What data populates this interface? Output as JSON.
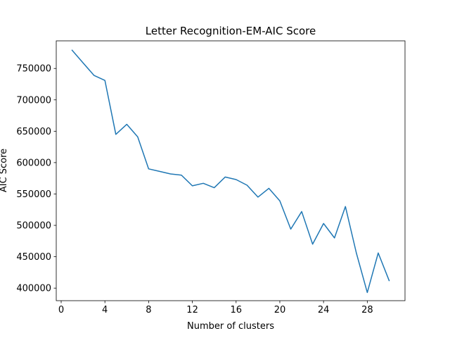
{
  "chart_data": {
    "type": "line",
    "title": "Letter Recognition-EM-AIC Score",
    "xlabel": "Number of clusters",
    "ylabel": "AIC Score",
    "xlim": [
      -0.45,
      31.45
    ],
    "ylim": [
      380000,
      794000
    ],
    "xticks": [
      0,
      4,
      8,
      12,
      16,
      20,
      24,
      28
    ],
    "xtick_labels": [
      "0",
      "4",
      "8",
      "12",
      "16",
      "20",
      "24",
      "28"
    ],
    "yticks": [
      400000,
      450000,
      500000,
      550000,
      600000,
      650000,
      700000,
      750000
    ],
    "ytick_labels": [
      "400000",
      "450000",
      "500000",
      "550000",
      "600000",
      "650000",
      "700000",
      "750000"
    ],
    "grid": false,
    "series": [
      {
        "color": "#1f77b4",
        "x": [
          1,
          2,
          3,
          4,
          5,
          6,
          7,
          8,
          9,
          10,
          11,
          12,
          13,
          14,
          15,
          16,
          17,
          18,
          19,
          20,
          21,
          22,
          23,
          24,
          25,
          26,
          27,
          28,
          29,
          30
        ],
        "y": [
          779000,
          759000,
          739000,
          731000,
          645000,
          661000,
          641000,
          590000,
          586000,
          582000,
          580000,
          563000,
          567000,
          560000,
          577000,
          573000,
          564000,
          545000,
          559000,
          539000,
          494000,
          522000,
          470000,
          503000,
          480000,
          530000,
          456000,
          393000,
          456000,
          412000
        ]
      }
    ]
  }
}
